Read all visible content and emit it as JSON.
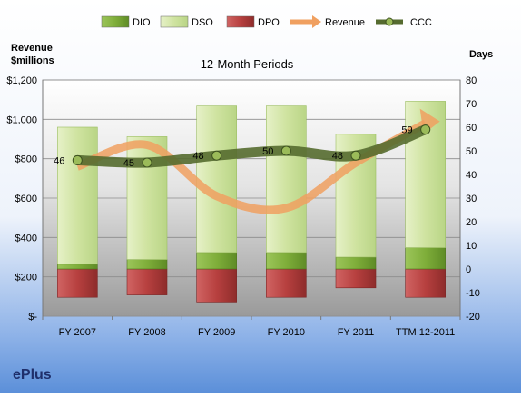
{
  "chart_data": {
    "type": "bar",
    "title": "12-Month Periods",
    "company": "ePlus",
    "ylabel_left": [
      "Revenue",
      "$millions"
    ],
    "ylabel_right": "Days",
    "categories": [
      "FY 2007",
      "FY 2008",
      "FY 2009",
      "FY 2010",
      "FY 2011",
      "TTM 12-2011"
    ],
    "left_axis": {
      "ylim": [
        0,
        1200
      ],
      "ticks": [
        0,
        200,
        400,
        600,
        800,
        1000,
        1200
      ],
      "tick_labels": [
        "$-",
        "$200",
        "$400",
        "$600",
        "$800",
        "$1,000",
        "$1,200"
      ]
    },
    "right_axis": {
      "ylim": [
        -20,
        80
      ],
      "ticks": [
        -20,
        -10,
        0,
        10,
        20,
        30,
        40,
        50,
        60,
        70,
        80
      ],
      "tick_labels": [
        "-20",
        "-10",
        "0",
        "10",
        "20",
        "30",
        "40",
        "50",
        "60",
        "70",
        "80"
      ]
    },
    "legend": {
      "placement": "top",
      "items": [
        "DIO",
        "DSO",
        "DPO",
        "Revenue",
        "CCC"
      ]
    },
    "series": [
      {
        "name": "DIO",
        "axis": "right",
        "kind": "stacked-bar",
        "values": [
          2,
          4,
          7,
          7,
          5,
          9
        ],
        "color": "#7fae3a"
      },
      {
        "name": "DSO",
        "axis": "right",
        "kind": "stacked-bar",
        "values": [
          58,
          52,
          62,
          62,
          52,
          62
        ],
        "color": "#cfe3a0"
      },
      {
        "name": "DPO",
        "axis": "right",
        "kind": "bar-negative",
        "values": [
          -12,
          -11,
          -14,
          -12,
          -8,
          -12
        ],
        "color": "#b7403f"
      },
      {
        "name": "Revenue",
        "axis": "left",
        "kind": "line",
        "values": [
          760,
          870,
          610,
          550,
          780,
          980
        ],
        "color": "#f0a060"
      },
      {
        "name": "CCC",
        "axis": "right",
        "kind": "line",
        "values": [
          46,
          45,
          48,
          50,
          48,
          59
        ],
        "data_labels": [
          "46",
          "45",
          "48",
          "50",
          "48",
          "59"
        ],
        "color": "#5f7a30"
      }
    ],
    "grid": true
  }
}
